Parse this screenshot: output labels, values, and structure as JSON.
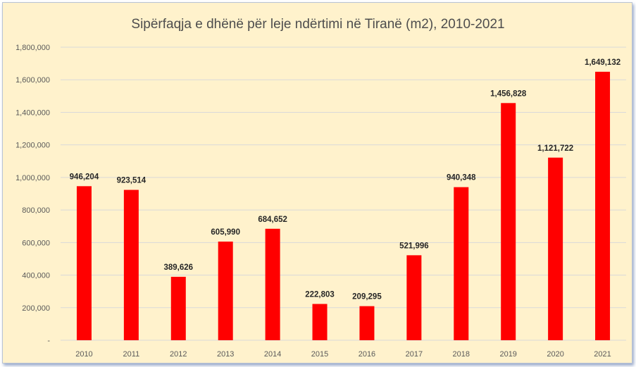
{
  "chart_data": {
    "type": "bar",
    "title": "Sipërfaqja e dhënë për leje ndërtimi në Tiranë (m2), 2010-2021",
    "xlabel": "",
    "ylabel": "",
    "categories": [
      "2010",
      "2011",
      "2012",
      "2013",
      "2014",
      "2015",
      "2016",
      "2017",
      "2018",
      "2019",
      "2020",
      "2021"
    ],
    "values": [
      946204,
      923514,
      389626,
      605990,
      684652,
      222803,
      209295,
      521996,
      940348,
      1456828,
      1121722,
      1649132
    ],
    "data_labels": [
      "946,204",
      "923,514",
      "389,626",
      "605,990",
      "684,652",
      "222,803",
      "209,295",
      "521,996",
      "940,348",
      "1,456,828",
      "1,121,722",
      "1,649,132"
    ],
    "ylim": [
      0,
      1800000
    ],
    "yticks": [
      0,
      200000,
      400000,
      600000,
      800000,
      1000000,
      1200000,
      1400000,
      1600000,
      1800000
    ],
    "ytick_labels": [
      "-",
      "200,000",
      "400,000",
      "600,000",
      "800,000",
      "1,000,000",
      "1,200,000",
      "1,400,000",
      "1,600,000",
      "1,800,000"
    ],
    "grid": true,
    "legend": "none",
    "bar_color": "#ff0000",
    "background_color": "#fff2cc",
    "gridline_color": "#d9d9d9"
  }
}
